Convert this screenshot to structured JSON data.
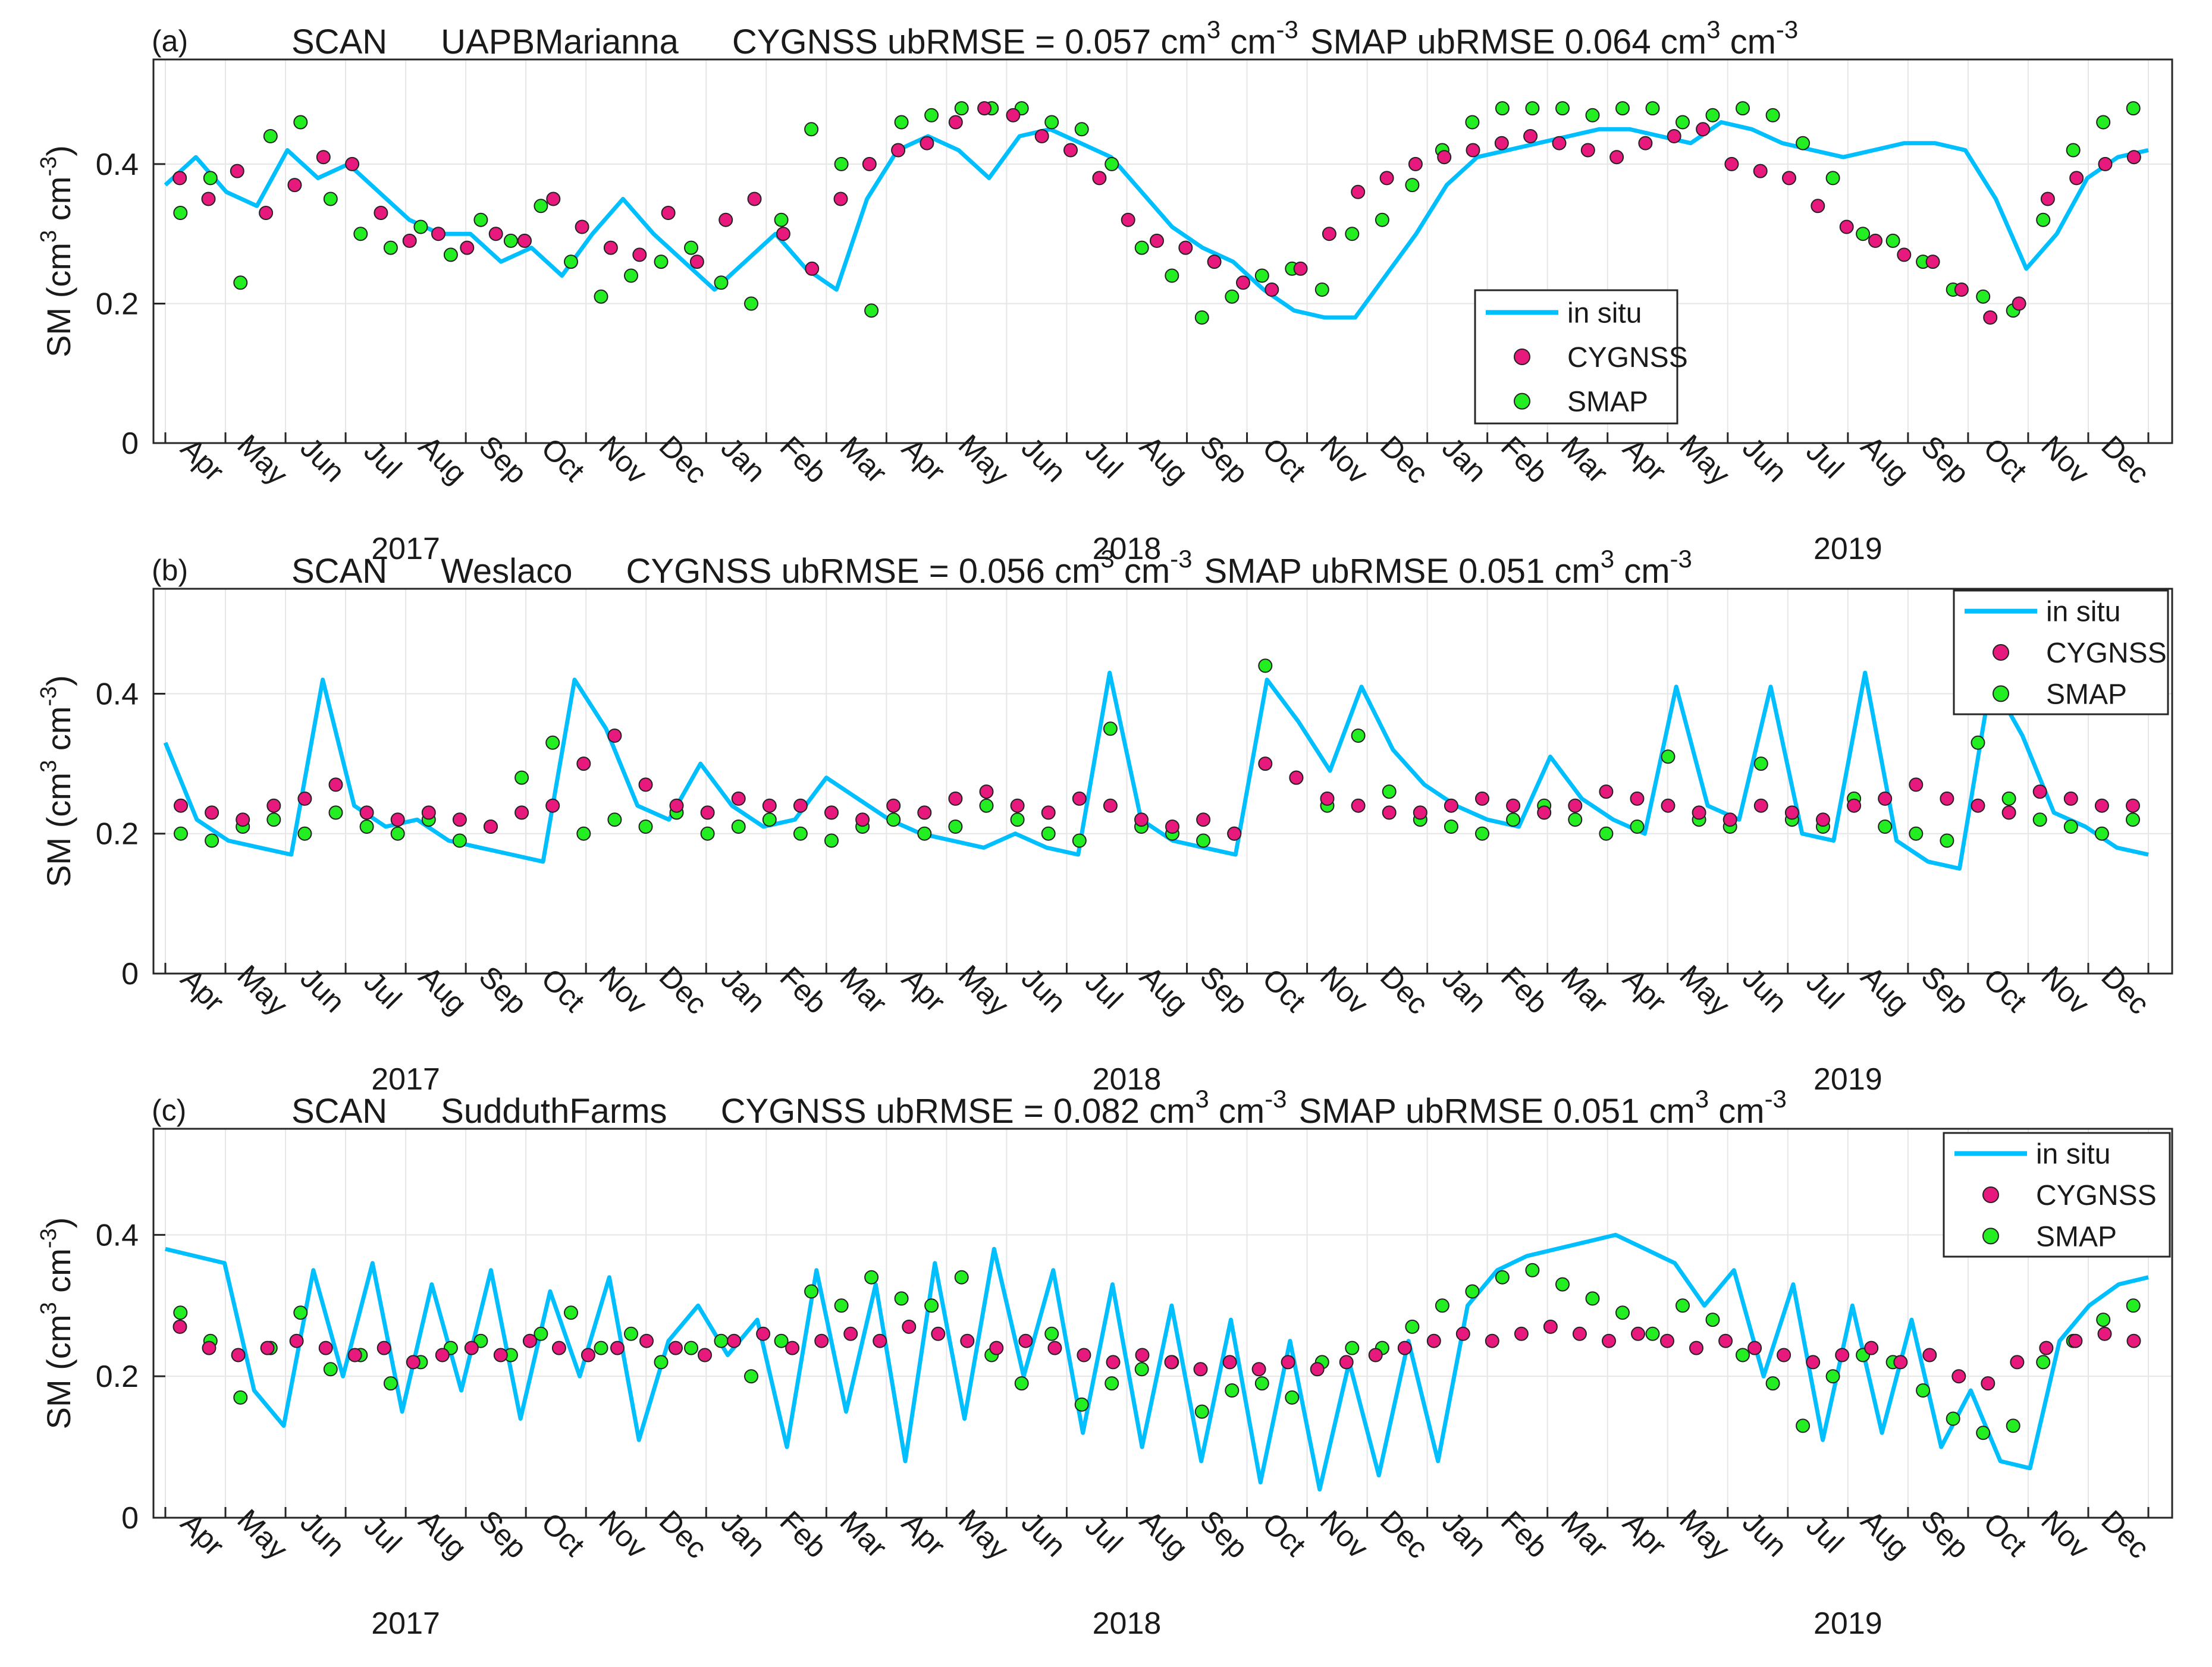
{
  "chart_data": [
    {
      "type": "line",
      "panel_label": "(a)",
      "network": "SCAN",
      "site": "UAPBMarianna",
      "cygnss_metric_label": "CYGNSS ubRMSE = ",
      "cygnss_metric_value": 0.057,
      "smap_metric_label": "SMAP ubRMSE ",
      "smap_metric_value": 0.064,
      "unit_base": "cm",
      "unit_exp_pos": "3",
      "unit_exp_neg": "-3",
      "ylabel": "SM (cm",
      "ylim": [
        0,
        0.55
      ],
      "yticks": [
        0,
        0.2,
        0.4
      ],
      "ytick_labels": [
        "0",
        "0.2",
        "0.4"
      ],
      "legend_position": "lower-right",
      "series_names": [
        "in situ",
        "CYGNSS",
        "SMAP"
      ],
      "months": [
        "Apr",
        "May",
        "Jun",
        "Jul",
        "Aug",
        "Sep",
        "Oct",
        "Nov",
        "Dec",
        "Jan",
        "Feb",
        "Mar",
        "Apr",
        "May",
        "Jun",
        "Jul",
        "Aug",
        "Sep",
        "Oct",
        "Nov",
        "Dec",
        "Jan",
        "Feb",
        "Mar",
        "Apr",
        "May",
        "Jun",
        "Jul",
        "Aug",
        "Sep",
        "Oct",
        "Nov",
        "Dec"
      ],
      "years": [
        {
          "label": "2017",
          "at_month": 4
        },
        {
          "label": "2018",
          "at_month": 16
        },
        {
          "label": "2019",
          "at_month": 28
        }
      ],
      "in_situ": [
        0.37,
        0.41,
        0.36,
        0.34,
        0.42,
        0.38,
        0.4,
        0.36,
        0.32,
        0.3,
        0.3,
        0.26,
        0.28,
        0.24,
        0.3,
        0.35,
        0.3,
        0.26,
        0.22,
        0.26,
        0.3,
        0.25,
        0.22,
        0.35,
        0.42,
        0.44,
        0.42,
        0.38,
        0.44,
        0.45,
        0.43,
        0.41,
        0.36,
        0.31,
        0.28,
        0.26,
        0.22,
        0.19,
        0.18,
        0.18,
        0.24,
        0.3,
        0.37,
        0.41,
        0.42,
        0.43,
        0.44,
        0.45,
        0.45,
        0.44,
        0.43,
        0.46,
        0.45,
        0.43,
        0.42,
        0.41,
        0.42,
        0.43,
        0.43,
        0.42,
        0.35,
        0.25,
        0.3,
        0.38,
        0.41,
        0.42
      ],
      "cygnss": [
        0.38,
        0.35,
        0.39,
        0.33,
        0.37,
        0.41,
        0.4,
        0.33,
        0.29,
        0.3,
        0.28,
        0.3,
        0.29,
        0.35,
        0.31,
        0.28,
        0.27,
        0.33,
        0.26,
        0.32,
        0.35,
        0.3,
        0.25,
        0.35,
        0.4,
        0.42,
        0.43,
        0.46,
        0.48,
        0.47,
        0.44,
        0.42,
        0.38,
        0.32,
        0.29,
        0.28,
        0.26,
        0.23,
        0.22,
        0.25,
        0.3,
        0.36,
        0.38,
        0.4,
        0.41,
        0.42,
        0.43,
        0.44,
        0.43,
        0.42,
        0.41,
        0.43,
        0.44,
        0.45,
        0.4,
        0.39,
        0.38,
        0.34,
        0.31,
        0.29,
        0.27,
        0.26,
        0.22,
        0.18,
        0.2,
        0.35,
        0.38,
        0.4,
        0.41
      ],
      "smap": [
        0.33,
        0.38,
        0.23,
        0.44,
        0.46,
        0.35,
        0.3,
        0.28,
        0.31,
        0.27,
        0.32,
        0.29,
        0.34,
        0.26,
        0.21,
        0.24,
        0.26,
        0.28,
        0.23,
        0.2,
        0.32,
        0.45,
        0.4,
        0.19,
        0.46,
        0.47,
        0.48,
        0.48,
        0.48,
        0.46,
        0.45,
        0.4,
        0.28,
        0.24,
        0.18,
        0.21,
        0.24,
        0.25,
        0.22,
        0.3,
        0.32,
        0.37,
        0.42,
        0.46,
        0.48,
        0.48,
        0.48,
        0.47,
        0.48,
        0.48,
        0.46,
        0.47,
        0.48,
        0.47,
        0.43,
        0.38,
        0.3,
        0.29,
        0.26,
        0.22,
        0.21,
        0.19,
        0.32,
        0.42,
        0.46,
        0.48
      ]
    },
    {
      "type": "line",
      "panel_label": "(b)",
      "network": "SCAN",
      "site": "Weslaco",
      "cygnss_metric_label": "CYGNSS ubRMSE = ",
      "cygnss_metric_value": 0.056,
      "smap_metric_label": "SMAP ubRMSE ",
      "smap_metric_value": 0.051,
      "unit_base": "cm",
      "unit_exp_pos": "3",
      "unit_exp_neg": "-3",
      "ylabel": "SM (cm",
      "ylim": [
        0,
        0.55
      ],
      "yticks": [
        0,
        0.2,
        0.4
      ],
      "ytick_labels": [
        "0",
        "0.2",
        "0.4"
      ],
      "legend_position": "top-right",
      "series_names": [
        "in situ",
        "CYGNSS",
        "SMAP"
      ],
      "months": [
        "Apr",
        "May",
        "Jun",
        "Jul",
        "Aug",
        "Sep",
        "Oct",
        "Nov",
        "Dec",
        "Jan",
        "Feb",
        "Mar",
        "Apr",
        "May",
        "Jun",
        "Jul",
        "Aug",
        "Sep",
        "Oct",
        "Nov",
        "Dec",
        "Jan",
        "Feb",
        "Mar",
        "Apr",
        "May",
        "Jun",
        "Jul",
        "Aug",
        "Sep",
        "Oct",
        "Nov",
        "Dec"
      ],
      "years": [
        {
          "label": "2017",
          "at_month": 4
        },
        {
          "label": "2018",
          "at_month": 16
        },
        {
          "label": "2019",
          "at_month": 28
        }
      ],
      "in_situ": [
        0.33,
        0.22,
        0.19,
        0.18,
        0.17,
        0.42,
        0.24,
        0.21,
        0.22,
        0.19,
        0.18,
        0.17,
        0.16,
        0.42,
        0.35,
        0.24,
        0.22,
        0.3,
        0.24,
        0.21,
        0.22,
        0.28,
        0.25,
        0.22,
        0.2,
        0.19,
        0.18,
        0.2,
        0.18,
        0.17,
        0.43,
        0.22,
        0.19,
        0.18,
        0.17,
        0.42,
        0.36,
        0.29,
        0.41,
        0.32,
        0.27,
        0.24,
        0.22,
        0.21,
        0.31,
        0.25,
        0.22,
        0.2,
        0.41,
        0.24,
        0.22,
        0.41,
        0.2,
        0.19,
        0.43,
        0.19,
        0.16,
        0.15,
        0.42,
        0.34,
        0.23,
        0.21,
        0.18,
        0.17
      ],
      "cygnss": [
        0.24,
        0.23,
        0.22,
        0.24,
        0.25,
        0.27,
        0.23,
        0.22,
        0.23,
        0.22,
        0.21,
        0.23,
        0.24,
        0.3,
        0.34,
        0.27,
        0.24,
        0.23,
        0.25,
        0.24,
        0.24,
        0.23,
        0.22,
        0.24,
        0.23,
        0.25,
        0.26,
        0.24,
        0.23,
        0.25,
        0.24,
        0.22,
        0.21,
        0.22,
        0.2,
        0.3,
        0.28,
        0.25,
        0.24,
        0.23,
        0.23,
        0.24,
        0.25,
        0.24,
        0.23,
        0.24,
        0.26,
        0.25,
        0.24,
        0.23,
        0.22,
        0.24,
        0.23,
        0.22,
        0.24,
        0.25,
        0.27,
        0.25,
        0.24,
        0.23,
        0.26,
        0.25,
        0.24,
        0.24
      ],
      "smap": [
        0.2,
        0.19,
        0.21,
        0.22,
        0.2,
        0.23,
        0.21,
        0.2,
        0.22,
        0.19,
        0.21,
        0.28,
        0.33,
        0.2,
        0.22,
        0.21,
        0.23,
        0.2,
        0.21,
        0.22,
        0.2,
        0.19,
        0.21,
        0.22,
        0.2,
        0.21,
        0.24,
        0.22,
        0.2,
        0.19,
        0.35,
        0.21,
        0.2,
        0.19,
        0.2,
        0.44,
        0.28,
        0.24,
        0.34,
        0.26,
        0.22,
        0.21,
        0.2,
        0.22,
        0.24,
        0.22,
        0.2,
        0.21,
        0.31,
        0.22,
        0.21,
        0.3,
        0.22,
        0.21,
        0.25,
        0.21,
        0.2,
        0.19,
        0.33,
        0.25,
        0.22,
        0.21,
        0.2,
        0.22
      ]
    },
    {
      "type": "line",
      "panel_label": "(c)",
      "network": "SCAN",
      "site": "SudduthFarms",
      "cygnss_metric_label": "CYGNSS ubRMSE = ",
      "cygnss_metric_value": 0.082,
      "smap_metric_label": "SMAP ubRMSE ",
      "smap_metric_value": 0.051,
      "unit_base": "cm",
      "unit_exp_pos": "3",
      "unit_exp_neg": "-3",
      "ylabel": "SM (cm",
      "ylim": [
        0,
        0.55
      ],
      "yticks": [
        0,
        0.2,
        0.4
      ],
      "ytick_labels": [
        "0",
        "0.2",
        "0.4"
      ],
      "legend_position": "top-right",
      "series_names": [
        "in situ",
        "CYGNSS",
        "SMAP"
      ],
      "months": [
        "Apr",
        "May",
        "Jun",
        "Jul",
        "Aug",
        "Sep",
        "Oct",
        "Nov",
        "Dec",
        "Jan",
        "Feb",
        "Mar",
        "Apr",
        "May",
        "Jun",
        "Jul",
        "Aug",
        "Sep",
        "Oct",
        "Nov",
        "Dec",
        "Jan",
        "Feb",
        "Mar",
        "Apr",
        "May",
        "Jun",
        "Jul",
        "Aug",
        "Sep",
        "Oct",
        "Nov",
        "Dec"
      ],
      "years": [
        {
          "label": "2017",
          "at_month": 4
        },
        {
          "label": "2018",
          "at_month": 16
        },
        {
          "label": "2019",
          "at_month": 28
        }
      ],
      "in_situ": [
        0.38,
        0.37,
        0.36,
        0.18,
        0.13,
        0.35,
        0.2,
        0.36,
        0.15,
        0.33,
        0.18,
        0.35,
        0.14,
        0.32,
        0.2,
        0.34,
        0.11,
        0.25,
        0.3,
        0.23,
        0.28,
        0.1,
        0.35,
        0.15,
        0.33,
        0.08,
        0.36,
        0.14,
        0.38,
        0.2,
        0.35,
        0.12,
        0.33,
        0.1,
        0.3,
        0.08,
        0.28,
        0.05,
        0.25,
        0.04,
        0.22,
        0.06,
        0.25,
        0.08,
        0.3,
        0.35,
        0.37,
        0.38,
        0.39,
        0.4,
        0.38,
        0.36,
        0.3,
        0.35,
        0.2,
        0.33,
        0.11,
        0.3,
        0.12,
        0.28,
        0.1,
        0.18,
        0.08,
        0.07,
        0.25,
        0.3,
        0.33,
        0.34
      ],
      "cygnss": [
        0.27,
        0.24,
        0.23,
        0.24,
        0.25,
        0.24,
        0.23,
        0.24,
        0.22,
        0.23,
        0.24,
        0.23,
        0.25,
        0.24,
        0.23,
        0.24,
        0.25,
        0.24,
        0.23,
        0.25,
        0.26,
        0.24,
        0.25,
        0.26,
        0.25,
        0.27,
        0.26,
        0.25,
        0.24,
        0.25,
        0.24,
        0.23,
        0.22,
        0.23,
        0.22,
        0.21,
        0.22,
        0.21,
        0.22,
        0.21,
        0.22,
        0.23,
        0.24,
        0.25,
        0.26,
        0.25,
        0.26,
        0.27,
        0.26,
        0.25,
        0.26,
        0.25,
        0.24,
        0.25,
        0.24,
        0.23,
        0.22,
        0.23,
        0.24,
        0.22,
        0.23,
        0.2,
        0.19,
        0.22,
        0.24,
        0.25,
        0.26,
        0.25
      ],
      "smap": [
        0.29,
        0.25,
        0.17,
        0.24,
        0.29,
        0.21,
        0.23,
        0.19,
        0.22,
        0.24,
        0.25,
        0.23,
        0.26,
        0.29,
        0.24,
        0.26,
        0.22,
        0.24,
        0.25,
        0.2,
        0.25,
        0.32,
        0.3,
        0.34,
        0.31,
        0.3,
        0.34,
        0.23,
        0.19,
        0.26,
        0.16,
        0.19,
        0.21,
        0.22,
        0.15,
        0.18,
        0.19,
        0.17,
        0.22,
        0.24,
        0.24,
        0.27,
        0.3,
        0.32,
        0.34,
        0.35,
        0.33,
        0.31,
        0.29,
        0.26,
        0.3,
        0.28,
        0.23,
        0.19,
        0.13,
        0.2,
        0.23,
        0.22,
        0.18,
        0.14,
        0.12,
        0.13,
        0.22,
        0.25,
        0.28,
        0.3
      ]
    }
  ],
  "colors": {
    "in_situ": "#00bfff",
    "cygnss": "#e8197d",
    "smap": "#22ee22",
    "axis": "#262626",
    "grid": "#e6e6e6"
  }
}
